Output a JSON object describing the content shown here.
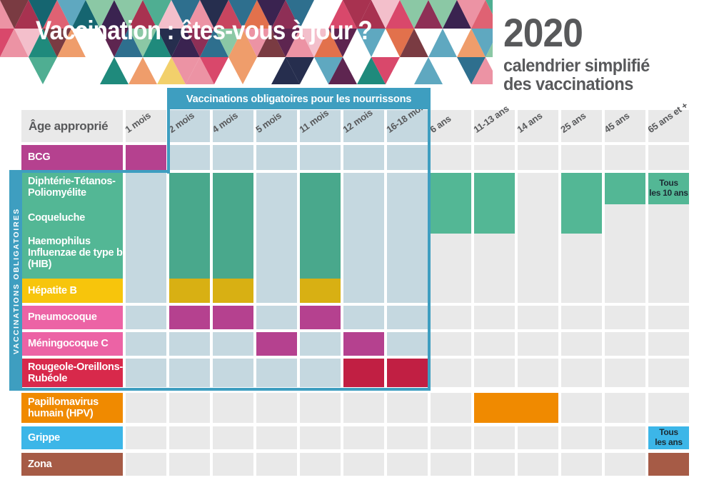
{
  "banner": {
    "title": "Vaccination : êtes-vous à jour ?",
    "palette": [
      "#C8455F",
      "#A83250",
      "#DF6273",
      "#EC93A4",
      "#F3BFCB",
      "#8E2F56",
      "#5E2550",
      "#3A2350",
      "#262E4E",
      "#156570",
      "#1F8A7C",
      "#4FAE92",
      "#8BC8A5",
      "#2E6F8E",
      "#5FA8C0",
      "#E2714C",
      "#EF9D6B",
      "#F2D06B",
      "#7A3B42",
      "#D9486B",
      "#FFFFFF"
    ]
  },
  "year_block": {
    "year": "2020",
    "subtitle_line1": "calendrier simplifié",
    "subtitle_line2": "des vaccinations"
  },
  "band_label": "Vaccinations obligatoires pour les nourrissons",
  "sidebar_label": "VACCINATIONS OBLIGATOIRES",
  "age_header": "Âge approprié",
  "colors": {
    "box_blue": "#3E9EC0",
    "inside_bg": "#C5D8E0",
    "outside_bg": "#E9E9E9",
    "header_text": "#57585A",
    "title_text": "#FFFFFF",
    "year_text": "#58595B",
    "note_text": "#1C2B33"
  },
  "columns": [
    {
      "id": "1-mois",
      "label": "1 mois",
      "zone": "outside"
    },
    {
      "id": "2-mois",
      "label": "2 mois",
      "zone": "inside"
    },
    {
      "id": "4-mois",
      "label": "4 mois",
      "zone": "inside"
    },
    {
      "id": "5-mois",
      "label": "5 mois",
      "zone": "inside"
    },
    {
      "id": "11-mois",
      "label": "11 mois",
      "zone": "inside"
    },
    {
      "id": "12-mois",
      "label": "12 mois",
      "zone": "inside"
    },
    {
      "id": "16-18-mois",
      "label": "16-18 mois",
      "zone": "inside"
    },
    {
      "id": "6-ans",
      "label": "6 ans",
      "zone": "outside"
    },
    {
      "id": "11-13-ans",
      "label": "11-13 ans",
      "zone": "outside"
    },
    {
      "id": "14-ans",
      "label": "14 ans",
      "zone": "outside"
    },
    {
      "id": "25-ans",
      "label": "25 ans",
      "zone": "outside"
    },
    {
      "id": "45-ans",
      "label": "45 ans",
      "zone": "outside"
    },
    {
      "id": "65-ans",
      "label": "65 ans et +",
      "zone": "outside"
    }
  ],
  "vaccines": [
    {
      "id": "bcg",
      "label": "BCG",
      "color": "#B5418F"
    },
    {
      "id": "dtp",
      "label": "Diphtérie-Tétanos-\nPoliomyélite",
      "color": "#53B795"
    },
    {
      "id": "coqueluche",
      "label": "Coqueluche",
      "color": "#53B795"
    },
    {
      "id": "hib",
      "label": "Haemophilus\nInfluenzae de type b\n(HIB)",
      "color": "#53B795"
    },
    {
      "id": "hepatite-b",
      "label": "Hépatite B",
      "color": "#F7C50C"
    },
    {
      "id": "pneumocoque",
      "label": "Pneumocoque",
      "color": "#EC63A5"
    },
    {
      "id": "meningocoque-c",
      "label": "Méningocoque C",
      "color": "#EC63A5"
    },
    {
      "id": "ror",
      "label": "Rougeole-Oreillons-\nRubéole",
      "color": "#D8294B"
    },
    {
      "id": "hpv",
      "label": "Papillomavirus\nhumain (HPV)",
      "color": "#F08A00"
    },
    {
      "id": "grippe",
      "label": "Grippe",
      "color": "#3CB6E8"
    },
    {
      "id": "zona",
      "label": "Zona",
      "color": "#A65B46"
    }
  ],
  "schedule": [
    {
      "vaccine": "bcg",
      "band": "bcg",
      "cols": [
        "1-mois"
      ],
      "color": "#B5418F"
    },
    {
      "vaccine": "dtp-coqueluche-hib",
      "band": "teal-block",
      "cols": [
        "2-mois",
        "4-mois",
        "11-mois"
      ],
      "color": "#49A88C"
    },
    {
      "vaccine": "hepatite-b",
      "band": "hep",
      "cols": [
        "2-mois",
        "4-mois",
        "11-mois"
      ],
      "color": "#D8B013"
    },
    {
      "vaccine": "pneumocoque",
      "band": "pneumo",
      "cols": [
        "2-mois",
        "4-mois",
        "11-mois"
      ],
      "color": "#B5418F"
    },
    {
      "vaccine": "meningocoque-c",
      "band": "mening",
      "cols": [
        "5-mois",
        "12-mois"
      ],
      "color": "#B5418F"
    },
    {
      "vaccine": "ror",
      "band": "ror",
      "cols": [
        "12-mois",
        "16-18-mois"
      ],
      "color": "#C11F43"
    },
    {
      "vaccine": "dtp-coqueluche",
      "band": "dtp-coq",
      "cols": [
        "6-ans",
        "11-13-ans",
        "25-ans"
      ],
      "color": "#53B795"
    },
    {
      "vaccine": "dtp",
      "band": "dtp",
      "cols": [
        "45-ans"
      ],
      "color": "#53B795"
    },
    {
      "vaccine": "dtp",
      "band": "dtp",
      "cols": [
        "65-ans"
      ],
      "color": "#53B795",
      "note": "Tous\nles 10 ans"
    },
    {
      "vaccine": "hpv",
      "band": "hpv",
      "cols": [
        "11-13-ans",
        "14-ans"
      ],
      "colspan": true,
      "color": "#F08A00"
    },
    {
      "vaccine": "grippe",
      "band": "grippe",
      "cols": [
        "65-ans"
      ],
      "color": "#3CB6E8",
      "note": "Tous\nles ans"
    },
    {
      "vaccine": "zona",
      "band": "zona",
      "cols": [
        "65-ans"
      ],
      "color": "#A65B46"
    }
  ]
}
